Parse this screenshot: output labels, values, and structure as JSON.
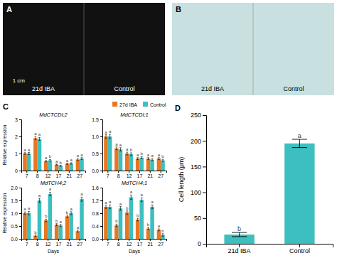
{
  "chart_data": [
    {
      "type": "image",
      "color": "#111111",
      "annotations": [
        "A",
        "21d IBA",
        "Control",
        "1 cm"
      ]
    },
    {
      "type": "image",
      "color": "#c8e0e0",
      "annotations": [
        "B",
        "21d IBA",
        "Control"
      ]
    },
    {
      "type": "bar",
      "title": "MdCTCDI;2",
      "annotations": [
        "C"
      ],
      "categories": [
        "7",
        "8",
        "12",
        "17",
        "21",
        "27"
      ],
      "series": [
        {
          "name": "27d IBA",
          "color": "#E87722",
          "values": [
            1.0,
            1.9,
            0.55,
            0.35,
            0.4,
            0.65
          ],
          "errors": [
            0.05,
            0.08,
            0.04,
            0.03,
            0.03,
            0.05
          ],
          "labels": [
            "a",
            "a",
            "a",
            "a",
            "a",
            "a"
          ]
        },
        {
          "name": "Control",
          "color": "#3DBFBF",
          "values": [
            1.0,
            1.85,
            0.6,
            0.28,
            0.42,
            0.7
          ],
          "errors": [
            0.06,
            0.09,
            0.05,
            0.03,
            0.04,
            0.06
          ],
          "labels": [
            "a",
            "a",
            "b",
            "b",
            "a",
            "a"
          ]
        }
      ],
      "ylim": [
        0,
        3
      ],
      "yticks": [
        0,
        1,
        2,
        3
      ],
      "ylabel": "Relative expression",
      "legend": "upper right"
    },
    {
      "type": "bar",
      "title": "MdCTCDI;1",
      "categories": [
        "7",
        "8",
        "12",
        "17",
        "21",
        "27"
      ],
      "series": [
        {
          "color": "#E87722",
          "values": [
            1.0,
            0.65,
            0.5,
            0.35,
            0.35,
            0.35
          ],
          "errors": [
            0.05,
            0.04,
            0.04,
            0.03,
            0.03,
            0.03
          ],
          "labels": [
            "a",
            "a",
            "a",
            "a",
            "a",
            "a"
          ]
        },
        {
          "color": "#3DBFBF",
          "values": [
            1.0,
            0.62,
            0.48,
            0.38,
            0.32,
            0.3
          ],
          "errors": [
            0.06,
            0.05,
            0.04,
            0.03,
            0.03,
            0.03
          ],
          "labels": [
            "a",
            "a",
            "b",
            "b",
            "a",
            "b"
          ]
        }
      ],
      "ylim": [
        0.0,
        1.5
      ],
      "yticks": [
        {
          "value": 0.0,
          "label": "0.0"
        },
        0.5,
        {
          "value": 1.0,
          "label": "1.0"
        },
        1.5
      ]
    },
    {
      "type": "bar",
      "title": "MdTCH4;2",
      "categories": [
        "7",
        "8",
        "12",
        "17",
        "21",
        "27"
      ],
      "series": [
        {
          "color": "#E87722",
          "values": [
            1.0,
            0.12,
            0.72,
            0.55,
            0.88,
            0.3
          ],
          "errors": [
            0.05,
            0.03,
            0.05,
            0.04,
            0.05,
            0.04
          ],
          "labels": [
            "a",
            "b",
            "b",
            "b",
            "b",
            "a"
          ]
        },
        {
          "color": "#3DBFBF",
          "values": [
            1.0,
            1.5,
            1.75,
            0.52,
            1.0,
            1.55
          ],
          "errors": [
            0.07,
            0.08,
            0.07,
            0.04,
            0.06,
            0.08
          ],
          "labels": [
            "a",
            "a",
            "a",
            "a",
            "a",
            "a"
          ]
        }
      ],
      "ylim": [
        0.0,
        2.0
      ],
      "yticks": [
        {
          "value": 0.0,
          "label": "0.0"
        },
        0.5,
        {
          "value": 1.0,
          "label": "1.0"
        },
        1.5,
        {
          "value": 2.0,
          "label": "2.0"
        }
      ],
      "ylabel": "Relative expression",
      "xlabel": "Days"
    },
    {
      "type": "bar",
      "title": "MdTCH4;1",
      "categories": [
        "7",
        "8",
        "12",
        "17",
        "21",
        "27"
      ],
      "series": [
        {
          "color": "#E87722",
          "values": [
            1.0,
            0.42,
            0.82,
            0.6,
            0.32,
            0.28
          ],
          "errors": [
            0.05,
            0.04,
            0.05,
            0.04,
            0.03,
            0.03
          ],
          "labels": [
            "a",
            "b",
            "b",
            "b",
            "b",
            "a"
          ]
        },
        {
          "color": "#3DBFBF",
          "values": [
            1.0,
            0.95,
            1.3,
            1.22,
            1.0,
            0.12
          ],
          "errors": [
            0.06,
            0.06,
            0.07,
            0.06,
            0.06,
            0.04
          ],
          "labels": [
            "a",
            "a",
            "a",
            "a",
            "a",
            "b"
          ]
        }
      ],
      "ylim": [
        0.0,
        1.6
      ],
      "yticks": [
        {
          "value": 0.0,
          "label": "0.0"
        },
        0.4,
        0.8,
        1.2,
        1.6
      ],
      "xlabel": "Days"
    },
    {
      "type": "bar",
      "annotations": [
        "D"
      ],
      "categories": [
        "21d IBA",
        "Control"
      ],
      "values": [
        18,
        195
      ],
      "errors": [
        4,
        8
      ],
      "labels": [
        "b",
        "a"
      ],
      "color": "#3DBFBF",
      "ylim": [
        0,
        250
      ],
      "yticks": [
        0,
        50,
        100,
        150,
        200,
        250
      ],
      "ylabel": "Cell length (μm)"
    }
  ]
}
